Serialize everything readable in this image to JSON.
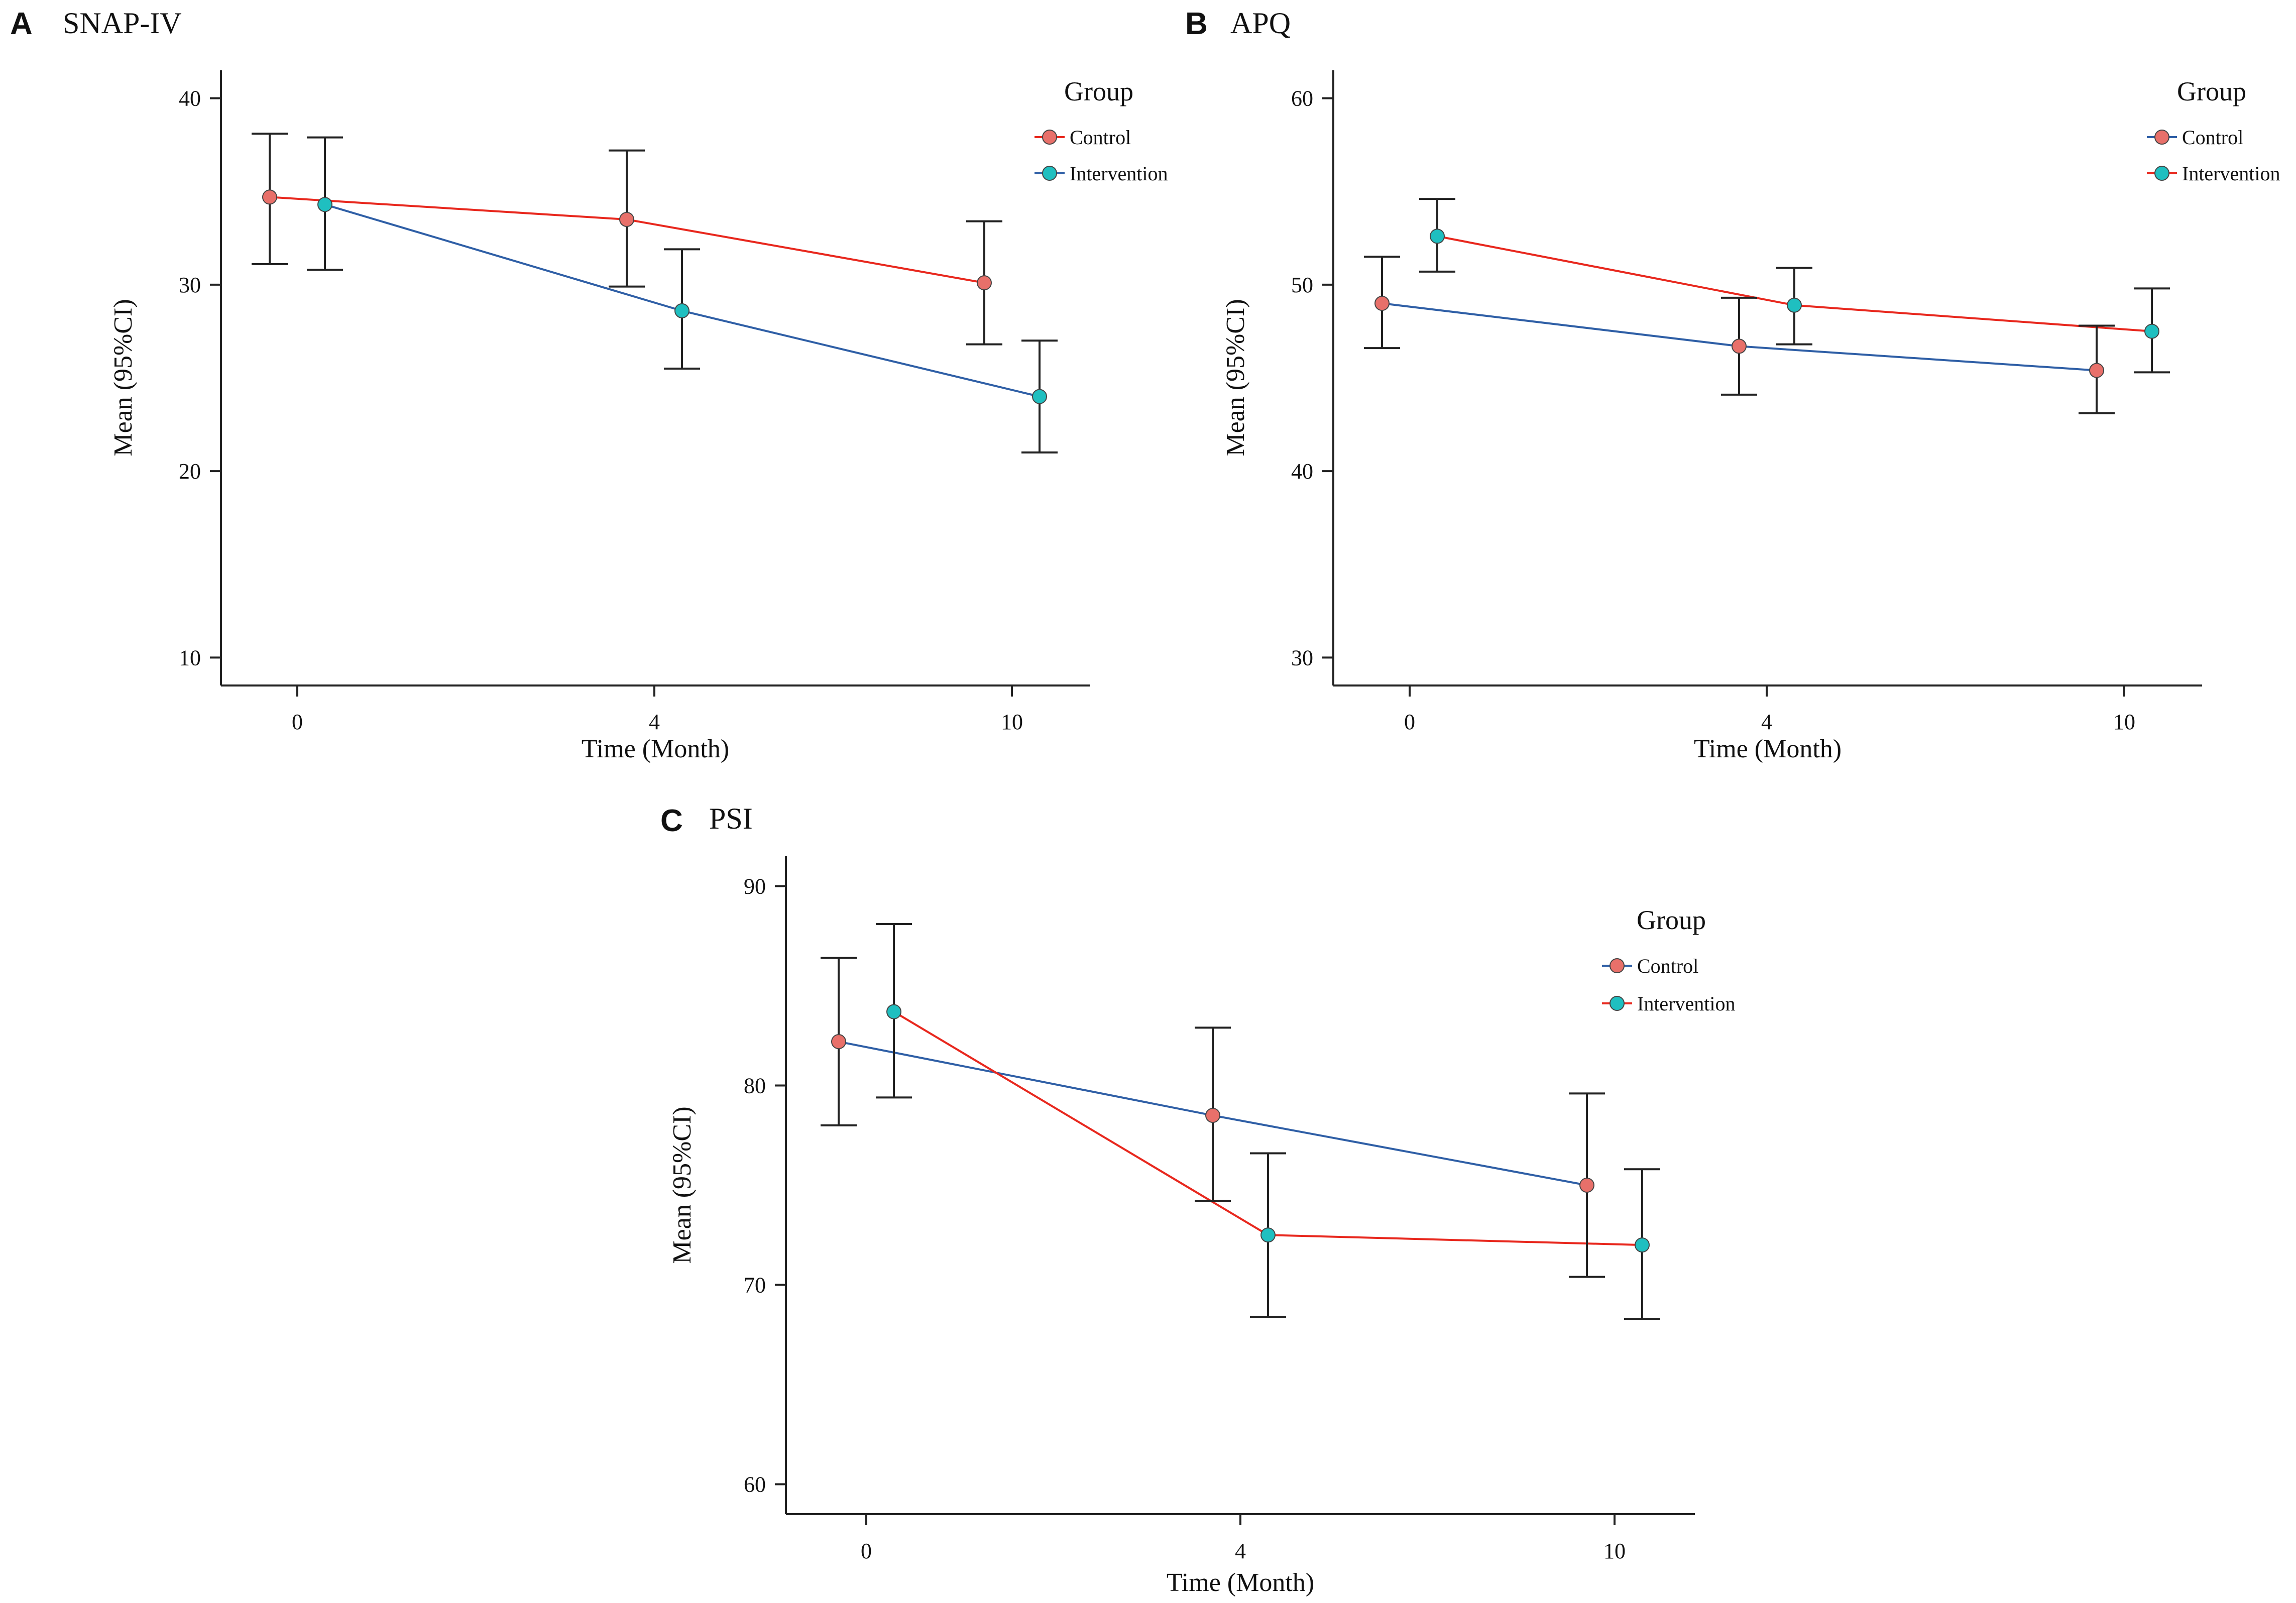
{
  "chart_data": [
    {
      "type": "line",
      "panel_label": "A",
      "title": "SNAP-IV",
      "xlabel": "Time (Month)",
      "ylabel": "Mean (95%CI)",
      "x_ticks": [
        "0",
        "4",
        "10"
      ],
      "y_ticks": [
        10,
        20,
        30,
        40
      ],
      "ylim": [
        8.5,
        41.5
      ],
      "legend": {
        "title": "Group",
        "position": "top-right"
      },
      "series": [
        {
          "name": "Control",
          "color": "#e8706a",
          "line_color": "#e8281e",
          "values": [
            34.7,
            33.5,
            30.1
          ],
          "ci_low": [
            31.1,
            29.9,
            26.8
          ],
          "ci_high": [
            38.1,
            37.2,
            33.4
          ]
        },
        {
          "name": "Intervention",
          "color": "#1fbfc0",
          "line_color": "#2f5fa6",
          "values": [
            34.3,
            28.6,
            24.0
          ],
          "ci_low": [
            30.8,
            25.5,
            21.0
          ],
          "ci_high": [
            37.9,
            31.9,
            27.0
          ]
        }
      ]
    },
    {
      "type": "line",
      "panel_label": "B",
      "title": "APQ",
      "xlabel": "Time (Month)",
      "ylabel": "Mean (95%CI)",
      "x_ticks": [
        "0",
        "4",
        "10"
      ],
      "y_ticks": [
        30,
        40,
        50,
        60
      ],
      "ylim": [
        28.5,
        61.5
      ],
      "legend": {
        "title": "Group",
        "position": "top-right"
      },
      "series": [
        {
          "name": "Control",
          "color": "#e8706a",
          "line_color": "#2f5fa6",
          "values": [
            49.0,
            46.7,
            45.4
          ],
          "ci_low": [
            46.6,
            44.1,
            43.1
          ],
          "ci_high": [
            51.5,
            49.3,
            47.8
          ]
        },
        {
          "name": "Intervention",
          "color": "#1fbfc0",
          "line_color": "#e8281e",
          "values": [
            52.6,
            48.9,
            47.5
          ],
          "ci_low": [
            50.7,
            46.8,
            45.3
          ],
          "ci_high": [
            54.6,
            50.9,
            49.8
          ]
        }
      ]
    },
    {
      "type": "line",
      "panel_label": "C",
      "title": "PSI",
      "xlabel": "Time (Month)",
      "ylabel": "Mean (95%CI)",
      "x_ticks": [
        "0",
        "4",
        "10"
      ],
      "y_ticks": [
        60,
        70,
        80,
        90
      ],
      "ylim": [
        58.5,
        91.5
      ],
      "legend": {
        "title": "Group",
        "position": "top-right"
      },
      "series": [
        {
          "name": "Control",
          "color": "#e8706a",
          "line_color": "#2f5fa6",
          "values": [
            82.2,
            78.5,
            75.0
          ],
          "ci_low": [
            78.0,
            74.2,
            70.4
          ],
          "ci_high": [
            86.4,
            82.9,
            79.6
          ]
        },
        {
          "name": "Intervention",
          "color": "#1fbfc0",
          "line_color": "#e8281e",
          "values": [
            83.7,
            72.5,
            72.0
          ],
          "ci_low": [
            79.4,
            68.4,
            68.3
          ],
          "ci_high": [
            88.1,
            76.6,
            75.8
          ]
        }
      ]
    }
  ]
}
